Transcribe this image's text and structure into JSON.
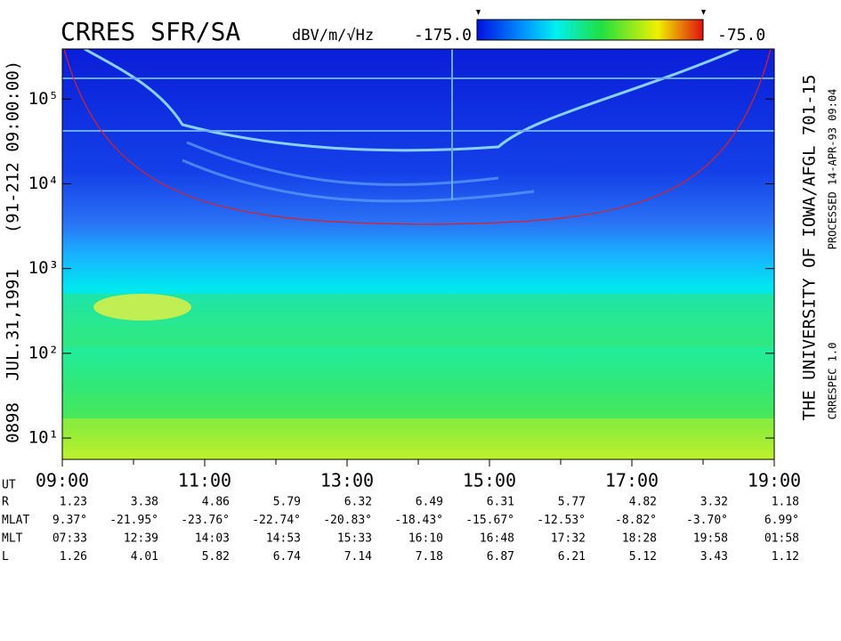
{
  "chart_data": {
    "type": "spectrogram",
    "title": "CRRES SFR/SA",
    "colorbar_label": "dBV/m/√Hz",
    "color_ticks": [
      {
        "value": -175,
        "label": "-175.0"
      },
      {
        "value": -75,
        "label": "-75.0"
      }
    ],
    "left_labels": [
      "0898",
      "JUL.31,1991",
      "(91-212 09:00:00)"
    ],
    "right_labels": [
      "THE UNIVERSITY OF IOWA/AFGL 701-15",
      "PROCESSED 14-APR-93  09:04",
      "CRRESPEC 1.0"
    ],
    "log_y": true,
    "ylim": [
      5.6,
      390000
    ],
    "yticks": [
      {
        "value": 10,
        "label": "10¹"
      },
      {
        "value": 100,
        "label": "10²"
      },
      {
        "value": 1000,
        "label": "10³"
      },
      {
        "value": 10000,
        "label": "10⁴"
      },
      {
        "value": 100000,
        "label": "10⁵"
      }
    ],
    "xlim": [
      9,
      19
    ],
    "xticks": [
      {
        "value": 9,
        "label": "09:00"
      },
      {
        "value": 11,
        "label": "11:00"
      },
      {
        "value": 13,
        "label": "13:00"
      },
      {
        "value": 15,
        "label": "15:00"
      },
      {
        "value": 17,
        "label": "17:00"
      },
      {
        "value": 19,
        "label": "19:00"
      }
    ],
    "xminor_ticks": [
      10,
      12,
      14,
      16,
      18
    ],
    "x_label": "UT",
    "ephemeris": [
      {
        "name": "R",
        "values": [
          "1.23",
          "3.38",
          "4.86",
          "5.79",
          "6.32",
          "6.49",
          "6.31",
          "5.77",
          "4.82",
          "3.32",
          "1.18"
        ]
      },
      {
        "name": "MLAT",
        "values": [
          "9.37°",
          "-21.95°",
          "-23.76°",
          "-22.74°",
          "-20.83°",
          "-18.43°",
          "-15.67°",
          "-12.53°",
          "-8.82°",
          "-3.70°",
          "6.99°"
        ]
      },
      {
        "name": "MLT",
        "values": [
          "07:33",
          "12:39",
          "14:03",
          "14:53",
          "15:33",
          "16:10",
          "16:48",
          "17:32",
          "18:28",
          "19:58",
          "01:58"
        ]
      },
      {
        "name": "L",
        "values": [
          "1.26",
          "4.01",
          "5.82",
          "6.74",
          "7.14",
          "7.18",
          "6.87",
          "6.21",
          "5.12",
          "3.43",
          "1.12"
        ]
      }
    ]
  }
}
